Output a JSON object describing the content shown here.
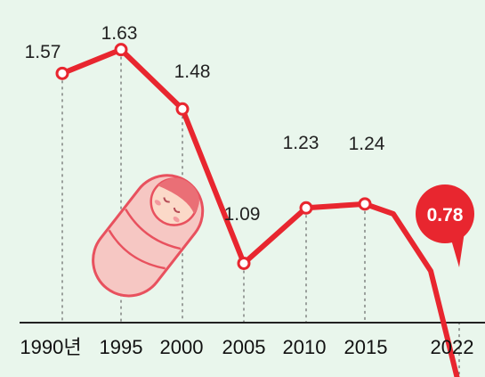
{
  "chart_data": {
    "type": "line",
    "title": "",
    "xlabel": "",
    "ylabel": "",
    "grid": false,
    "categories": [
      "1990년",
      "1995",
      "2000",
      "2005",
      "2010",
      "2015",
      "2022"
    ],
    "series": [
      {
        "values": [
          1.57,
          1.63,
          1.48,
          1.09,
          1.23,
          1.24,
          0.78
        ],
        "labels": [
          "1.57",
          "1.63",
          "1.48",
          "1.09",
          "1.23",
          "1.24",
          "0.78"
        ]
      }
    ],
    "highlight_last": true,
    "colors": {
      "line": "#e8262f",
      "marker_fill": "#ffffff",
      "highlight": "#e8262f",
      "background": "#e9f6ec",
      "axis": "#222222"
    },
    "decoration": "baby-illustration"
  }
}
